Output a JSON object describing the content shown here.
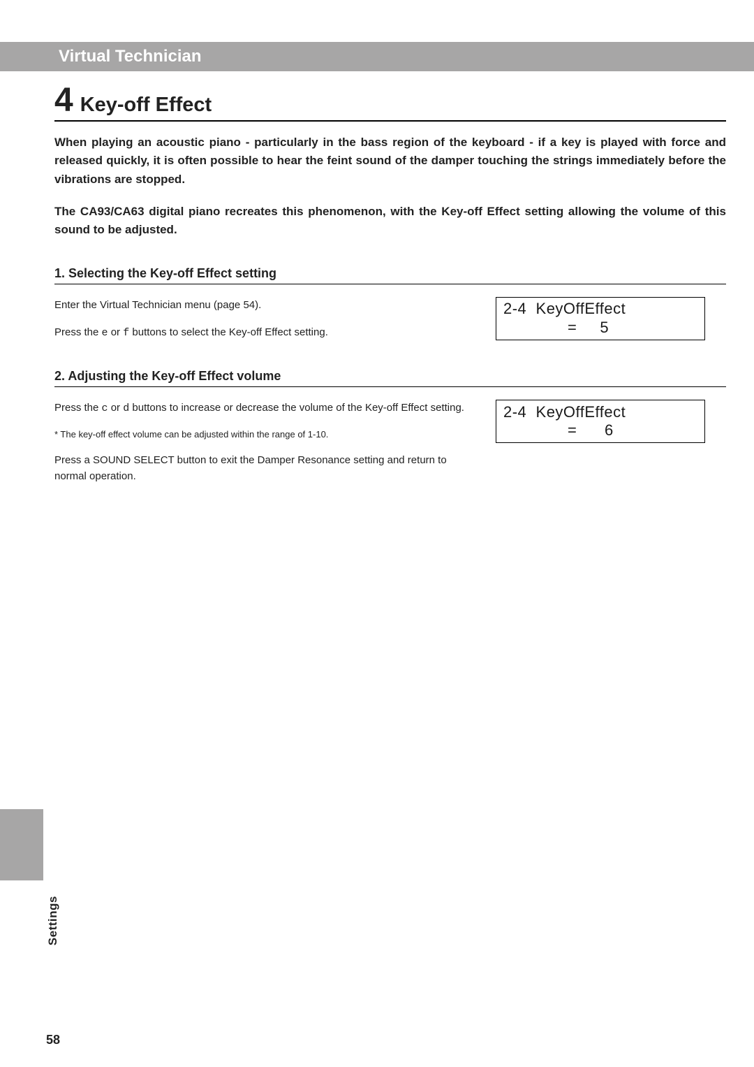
{
  "header": {
    "bar_label": "Virtual Technician",
    "bar_bg": "#a7a6a6",
    "bar_fg": "#ffffff"
  },
  "title": {
    "number": "4",
    "text": "Key-off Effect"
  },
  "intro_paragraph_1": "When playing an acoustic piano - particularly in the bass region of the keyboard - if a key is played with force and released quickly, it is often possible to hear the feint sound of the damper touching the strings immediately before the vibrations are stopped.",
  "intro_paragraph_2": "The CA93/CA63 digital piano recreates this phenomenon, with the Key-off Effect setting allowing the volume of this sound to be adjusted.",
  "section1": {
    "heading": "1.  Selecting the Key-off Effect setting",
    "body1": "Enter the Virtual Technician menu (page 54).",
    "body2_pre": "Press the ",
    "body2_key1": "e",
    "body2_mid": " or ",
    "body2_key2": "f",
    "body2_post": " buttons to select the Key-off Effect setting.",
    "lcd_line1": "2-4  KeyOffEffect",
    "lcd_value": "5"
  },
  "section2": {
    "heading": "2.  Adjusting the Key-off Effect volume",
    "body1_pre": "Press the ",
    "body1_key1": "c",
    "body1_mid": " or ",
    "body1_key2": "d",
    "body1_post": " buttons to increase or decrease the volume of the Key-off Effect setting.",
    "note": "* The key-off effect volume can be adjusted within the range of 1-10.",
    "body2": "Press a SOUND SELECT button to exit the Damper Resonance setting and return to normal operation.",
    "lcd_line1": "2-4  KeyOffEffect",
    "lcd_value": "6"
  },
  "side_label": "Settings",
  "page_number": "58",
  "colors": {
    "text": "#222222",
    "rule": "#000000",
    "tab_bg": "#a7a6a6"
  },
  "fontsizes": {
    "header_bar": 24,
    "title_number": 48,
    "title_text": 29,
    "intro": 17,
    "subheading": 18,
    "body": 15,
    "note": 13,
    "lcd": 22,
    "side_label": 17,
    "page_number": 18
  }
}
